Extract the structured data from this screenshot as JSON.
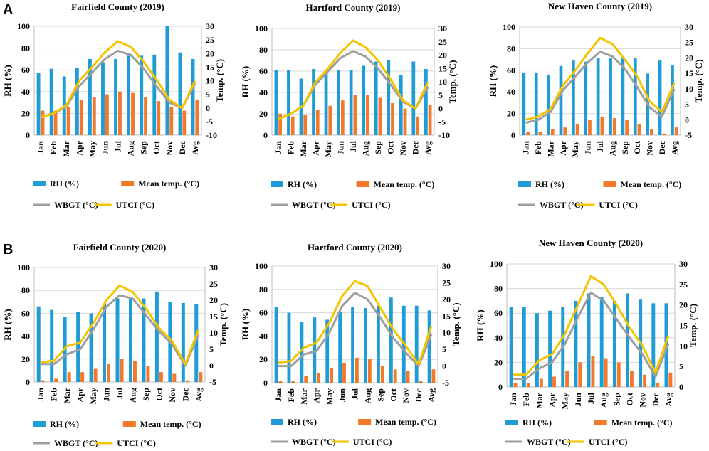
{
  "figure": {
    "panel_labels": [
      "A",
      "B"
    ],
    "legend": {
      "rh": "RH (%)",
      "temp": "Mean temp. (°C)",
      "wbgt": "WBGT (°C)",
      "utci": "UTCI (°C)"
    },
    "left_axis_label": "RH (%)",
    "right_axis_label": "Temp. (°C)",
    "colors": {
      "rh": "#1f9bd6",
      "temp": "#f2782a",
      "wbgt": "#9e9e9e",
      "utci": "#f5c400",
      "grid": "#d9d9d9",
      "axis": "#000000"
    }
  },
  "chart_data": [
    {
      "type": "bar+line",
      "title": "Fairfield County (2019)",
      "categories": [
        "Jan",
        "Feb",
        "Mar",
        "Apr",
        "May",
        "Jun",
        "Jul",
        "Aug",
        "Sep",
        "Oct",
        "Nov",
        "Dec",
        "Avg"
      ],
      "ylim_left": [
        0,
        100
      ],
      "yticks_left": [
        0,
        20,
        40,
        60,
        80,
        100
      ],
      "ylim_right": [
        -10,
        30
      ],
      "yticks_right": [
        -10,
        -5,
        0,
        5,
        10,
        15,
        20,
        25,
        30
      ],
      "series": [
        {
          "name": "RH (%)",
          "axis": "left",
          "kind": "bar",
          "values": [
            57,
            61,
            54,
            62,
            70,
            67,
            70,
            73,
            73,
            74,
            100,
            76,
            70
          ]
        },
        {
          "name": "Mean temp. (°C)",
          "axis": "right",
          "kind": "bar",
          "values": [
            -1,
            -1,
            0.5,
            3,
            4,
            5,
            6,
            5.5,
            4,
            2.5,
            0.5,
            -1,
            3
          ]
        },
        {
          "name": "WBGT (°C)",
          "axis": "right",
          "kind": "line",
          "values": [
            -3.5,
            -2,
            0.5,
            8,
            13,
            18,
            21,
            19.5,
            14.5,
            8,
            2,
            0,
            9
          ]
        },
        {
          "name": "UTCI (°C)",
          "axis": "right",
          "kind": "line",
          "values": [
            -3.5,
            -2,
            1,
            10,
            15,
            20.5,
            24.5,
            22.5,
            17,
            10.5,
            3,
            0,
            10
          ]
        }
      ]
    },
    {
      "type": "bar+line",
      "title": "Hartford County (2019)",
      "categories": [
        "Jan",
        "Feb",
        "Mar",
        "Apr",
        "May",
        "Jun",
        "Jul",
        "Aug",
        "Sep",
        "Oct",
        "Nov",
        "Dec",
        "Avg"
      ],
      "ylim_left": [
        0,
        100
      ],
      "yticks_left": [
        0,
        20,
        40,
        60,
        80,
        100
      ],
      "ylim_right": [
        -10,
        30
      ],
      "yticks_right": [
        -10,
        -5,
        0,
        5,
        10,
        15,
        20,
        25,
        30
      ],
      "series": [
        {
          "name": "RH (%)",
          "axis": "left",
          "kind": "bar",
          "values": [
            61,
            61,
            53,
            62,
            61,
            61,
            61,
            65,
            69,
            70,
            56,
            69,
            62
          ]
        },
        {
          "name": "Mean temp. (°C)",
          "axis": "right",
          "kind": "bar",
          "values": [
            -2,
            -3,
            -2.5,
            -0.5,
            1,
            3,
            5,
            5,
            4,
            2,
            0,
            -3,
            1.5
          ]
        },
        {
          "name": "WBGT (°C)",
          "axis": "right",
          "kind": "line",
          "values": [
            -4,
            -2,
            1,
            9,
            14,
            19,
            21.5,
            19.5,
            15,
            9,
            2.5,
            0,
            8
          ]
        },
        {
          "name": "UTCI (°C)",
          "axis": "right",
          "kind": "line",
          "values": [
            -4,
            -2,
            1,
            10,
            15,
            21,
            25.5,
            23,
            18,
            11,
            3,
            0,
            10
          ]
        }
      ]
    },
    {
      "type": "bar+line",
      "title": "New Haven County (2019)",
      "categories": [
        "Jan",
        "Feb",
        "Mar",
        "Apr",
        "May",
        "Jun",
        "Jul",
        "Aug",
        "Sep",
        "Oct",
        "Nov",
        "Dec",
        "Avg"
      ],
      "ylim_left": [
        0,
        100
      ],
      "yticks_left": [
        0,
        20,
        40,
        60,
        80,
        100
      ],
      "ylim_right": [
        -5,
        30
      ],
      "yticks_right": [
        -5,
        0,
        5,
        10,
        15,
        20,
        25,
        30
      ],
      "series": [
        {
          "name": "RH (%)",
          "axis": "left",
          "kind": "bar",
          "values": [
            58,
            58,
            56,
            64,
            69,
            68,
            71,
            71,
            71,
            71,
            57,
            69,
            65
          ]
        },
        {
          "name": "Mean temp. (°C)",
          "axis": "right",
          "kind": "bar",
          "values": [
            -4,
            -4,
            -3,
            -2.5,
            -1.5,
            0,
            1,
            0.5,
            0,
            -1.5,
            -3,
            -4.5,
            -2.5
          ]
        },
        {
          "name": "WBGT (°C)",
          "axis": "right",
          "kind": "line",
          "values": [
            -1,
            0,
            2.5,
            9.5,
            14,
            18.5,
            22,
            20.5,
            16.5,
            10.5,
            4,
            1,
            10
          ]
        },
        {
          "name": "UTCI (°C)",
          "axis": "right",
          "kind": "line",
          "values": [
            0,
            1,
            3.5,
            11,
            16,
            21.5,
            26.5,
            24.5,
            19.5,
            14,
            6,
            2.5,
            12
          ]
        }
      ]
    },
    {
      "type": "bar+line",
      "title": "Fairfield County (2020)",
      "categories": [
        "Jan",
        "Feb",
        "Mar",
        "Apr",
        "May",
        "Jun",
        "Jul",
        "Aug",
        "Sep",
        "Oct",
        "Nov",
        "Dec",
        "Avg"
      ],
      "ylim_left": [
        0,
        100
      ],
      "yticks_left": [
        0,
        20,
        40,
        60,
        80,
        100
      ],
      "ylim_right": [
        -5,
        30
      ],
      "yticks_right": [
        -5,
        0,
        5,
        10,
        15,
        20,
        25,
        30
      ],
      "series": [
        {
          "name": "RH (%)",
          "axis": "left",
          "kind": "bar",
          "values": [
            66,
            63,
            57,
            61,
            60,
            68,
            73,
            73,
            73,
            79,
            70,
            69,
            68
          ]
        },
        {
          "name": "Mean temp. (°C)",
          "axis": "right",
          "kind": "bar",
          "values": [
            -4.5,
            -4,
            -2,
            -2,
            -1,
            0.5,
            2,
            1.5,
            0,
            -2,
            -2.5,
            -4.5,
            -2
          ]
        },
        {
          "name": "WBGT (°C)",
          "axis": "right",
          "kind": "line",
          "values": [
            0.5,
            0.5,
            3.5,
            5,
            11,
            18,
            21.5,
            20.5,
            15.5,
            10.5,
            6.5,
            0,
            9.5
          ]
        },
        {
          "name": "UTCI (°C)",
          "axis": "right",
          "kind": "line",
          "values": [
            1,
            1.5,
            6,
            7,
            13,
            20,
            24.5,
            22.5,
            17.5,
            11.5,
            7.5,
            0.5,
            11
          ]
        }
      ]
    },
    {
      "type": "bar+line",
      "title": "Hartford County (2020)",
      "categories": [
        "Jan",
        "Feb",
        "Mar",
        "Apr",
        "May",
        "Jun",
        "Jul",
        "Aug",
        "Sep",
        "Oct",
        "Nov",
        "Dec",
        "Avg"
      ],
      "ylim_left": [
        0,
        100
      ],
      "yticks_left": [
        0,
        20,
        40,
        60,
        80,
        100
      ],
      "ylim_right": [
        -5,
        30
      ],
      "yticks_right": [
        -5,
        0,
        5,
        10,
        15,
        20,
        25,
        30
      ],
      "series": [
        {
          "name": "RH (%)",
          "axis": "left",
          "kind": "bar",
          "values": [
            65,
            60,
            52,
            56,
            54,
            61,
            65,
            64,
            66,
            73,
            66,
            66,
            62
          ]
        },
        {
          "name": "Mean temp. (°C)",
          "axis": "right",
          "kind": "bar",
          "values": [
            -4.5,
            -4.5,
            -3,
            -2,
            -0.5,
            1,
            2.5,
            2,
            0,
            -1,
            -1.5,
            -4.5,
            -1
          ]
        },
        {
          "name": "WBGT (°C)",
          "axis": "right",
          "kind": "line",
          "values": [
            0,
            0,
            3.5,
            4.5,
            10,
            18,
            22,
            20,
            14.5,
            8.5,
            4,
            0,
            9.5
          ]
        },
        {
          "name": "UTCI (°C)",
          "axis": "right",
          "kind": "line",
          "values": [
            1,
            1.5,
            5.5,
            7,
            13,
            21,
            25.5,
            24,
            17.5,
            11,
            6,
            0.5,
            12
          ]
        }
      ]
    },
    {
      "type": "bar+line",
      "title": "New Haven County (2020)",
      "categories": [
        "Jan",
        "Feb",
        "Mar",
        "Apr",
        "May",
        "Jun",
        "Jul",
        "Aug",
        "Sep",
        "Oct",
        "Nov",
        "Dec",
        "Avg"
      ],
      "ylim_left": [
        0,
        100
      ],
      "yticks_left": [
        0,
        20,
        40,
        60,
        80,
        100
      ],
      "ylim_right": [
        0,
        30
      ],
      "yticks_right": [
        0,
        5,
        10,
        15,
        20,
        25,
        30
      ],
      "series": [
        {
          "name": "RH (%)",
          "axis": "left",
          "kind": "bar",
          "values": [
            65,
            65,
            60,
            62,
            65,
            70,
            76,
            73,
            70,
            76,
            71,
            68,
            68
          ]
        },
        {
          "name": "Mean temp. (°C)",
          "axis": "right",
          "kind": "bar",
          "values": [
            1,
            1,
            2,
            2.5,
            4,
            6,
            7.5,
            7,
            6,
            4,
            3,
            1,
            3.5
          ]
        },
        {
          "name": "WBGT (°C)",
          "axis": "right",
          "kind": "line",
          "values": [
            2,
            2,
            4.5,
            6,
            10.5,
            17,
            23,
            21,
            16.5,
            12,
            8,
            2.5,
            10.5
          ]
        },
        {
          "name": "UTCI (°C)",
          "axis": "right",
          "kind": "line",
          "values": [
            3,
            3,
            6.5,
            8,
            13,
            20,
            27,
            25,
            20,
            14.5,
            10,
            3.5,
            12.5
          ]
        }
      ]
    }
  ]
}
